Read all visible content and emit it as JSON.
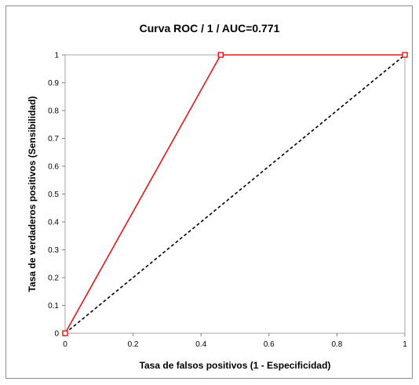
{
  "chart_data": {
    "type": "line",
    "title": "Curva ROC / 1 / AUC=0.771",
    "xlabel": "Tasa de falsos positivos (1 - Especificidad)",
    "ylabel": "Tasa de verdaderos positivos (Sensibilidad)",
    "xlim": [
      0,
      1
    ],
    "ylim": [
      0,
      1
    ],
    "x_ticks": [
      "0",
      "0.2",
      "0.4",
      "0.6",
      "0.8",
      "1"
    ],
    "y_ticks": [
      "0",
      "0.1",
      "0.2",
      "0.3",
      "0.4",
      "0.5",
      "0.6",
      "0.7",
      "0.8",
      "0.9",
      "1"
    ],
    "grid": false,
    "legend": "none",
    "series": [
      {
        "color": "#e8141b",
        "style": "solid",
        "markers": "square",
        "points": [
          {
            "x": 0,
            "y": 0
          },
          {
            "x": 0.458,
            "y": 1
          },
          {
            "x": 1,
            "y": 1
          }
        ]
      },
      {
        "color": "#000000",
        "style": "dashed",
        "markers": "none",
        "points": [
          {
            "x": 0,
            "y": 0
          },
          {
            "x": 1,
            "y": 1
          }
        ]
      }
    ]
  }
}
